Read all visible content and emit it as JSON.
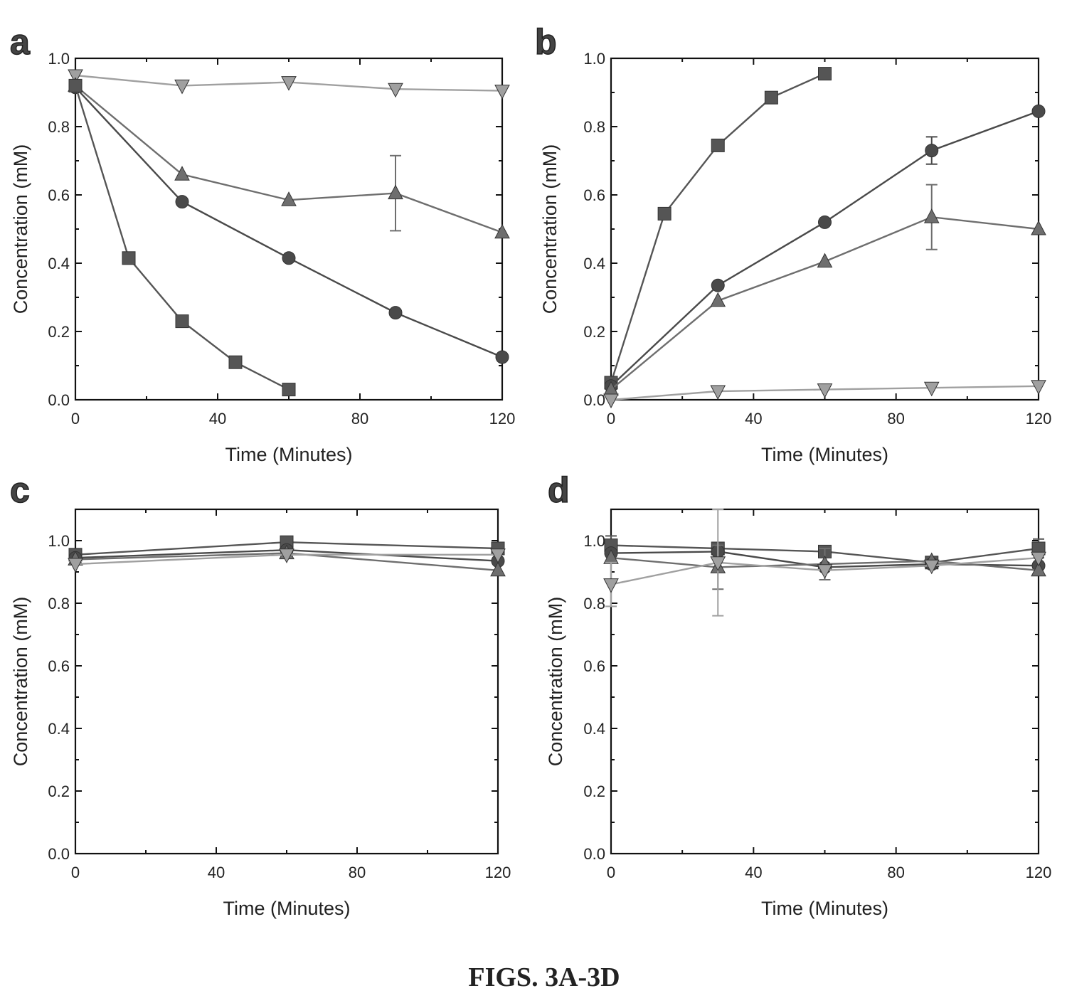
{
  "figure_caption": "FIGS. 3A-3D",
  "colors": {
    "dark": "#4a4a4a",
    "medium": "#6e6e6e",
    "light": "#a0a0a0",
    "axis": "#111111"
  },
  "chart_data": [
    {
      "panel": "a",
      "type": "line",
      "xlabel": "Time (Minutes)",
      "ylabel": "Concentration (mM)",
      "xlim": [
        0,
        120
      ],
      "ylim": [
        0,
        1.0
      ],
      "xticks": [
        0,
        40,
        80,
        120
      ],
      "yticks": [
        0.0,
        0.2,
        0.4,
        0.6,
        0.8,
        1.0
      ],
      "xtick_labels": [
        "0",
        "40",
        "80",
        "120"
      ],
      "ytick_labels": [
        "0.0",
        "0.2",
        "0.4",
        "0.6",
        "0.8",
        "1.0"
      ],
      "series": [
        {
          "marker": "triangle-down",
          "color": "#a0a0a0",
          "x": [
            0,
            30,
            60,
            90,
            120
          ],
          "y": [
            0.95,
            0.92,
            0.93,
            0.91,
            0.905
          ]
        },
        {
          "marker": "triangle-up",
          "color": "#6e6e6e",
          "x": [
            0,
            30,
            60,
            90,
            120
          ],
          "y": [
            0.92,
            0.66,
            0.585,
            0.605,
            0.49
          ],
          "err": [
            0,
            0,
            0,
            0.11,
            0
          ]
        },
        {
          "marker": "circle",
          "color": "#4a4a4a",
          "x": [
            0,
            30,
            60,
            90,
            120
          ],
          "y": [
            0.915,
            0.58,
            0.415,
            0.255,
            0.125
          ]
        },
        {
          "marker": "square",
          "color": "#555555",
          "x": [
            0,
            15,
            30,
            45,
            60
          ],
          "y": [
            0.92,
            0.415,
            0.23,
            0.11,
            0.03
          ]
        }
      ]
    },
    {
      "panel": "b",
      "type": "line",
      "xlabel": "Time (Minutes)",
      "ylabel": "Concentration (mM)",
      "xlim": [
        0,
        120
      ],
      "ylim": [
        0,
        1.0
      ],
      "xticks": [
        0,
        40,
        80,
        120
      ],
      "yticks": [
        0.0,
        0.2,
        0.4,
        0.6,
        0.8,
        1.0
      ],
      "xtick_labels": [
        "0",
        "40",
        "80",
        "120"
      ],
      "ytick_labels": [
        "0.0",
        "0.2",
        "0.4",
        "0.6",
        "0.8",
        "1.0"
      ],
      "series": [
        {
          "marker": "square",
          "color": "#555555",
          "x": [
            0,
            15,
            30,
            45,
            60
          ],
          "y": [
            0.05,
            0.545,
            0.745,
            0.885,
            0.955
          ]
        },
        {
          "marker": "circle",
          "color": "#4a4a4a",
          "x": [
            0,
            30,
            60,
            90,
            120
          ],
          "y": [
            0.04,
            0.335,
            0.52,
            0.73,
            0.845
          ],
          "err": [
            0,
            0,
            0,
            0.04,
            0
          ]
        },
        {
          "marker": "triangle-up",
          "color": "#6e6e6e",
          "x": [
            0,
            30,
            60,
            90,
            120
          ],
          "y": [
            0.03,
            0.29,
            0.405,
            0.535,
            0.5
          ],
          "err": [
            0,
            0,
            0,
            0.095,
            0
          ]
        },
        {
          "marker": "triangle-down",
          "color": "#a0a0a0",
          "x": [
            0,
            30,
            60,
            90,
            120
          ],
          "y": [
            0.0,
            0.025,
            0.03,
            0.035,
            0.04
          ]
        }
      ]
    },
    {
      "panel": "c",
      "type": "line",
      "xlabel": "Time (Minutes)",
      "ylabel": "Concentration (mM)",
      "xlim": [
        0,
        120
      ],
      "ylim": [
        0,
        1.1
      ],
      "xticks": [
        0,
        40,
        80,
        120
      ],
      "yticks": [
        0.0,
        0.2,
        0.4,
        0.6,
        0.8,
        1.0
      ],
      "xtick_labels": [
        "0",
        "40",
        "80",
        "120"
      ],
      "ytick_labels": [
        "0.0",
        "0.2",
        "0.4",
        "0.6",
        "0.8",
        "1.0"
      ],
      "series": [
        {
          "marker": "square",
          "color": "#555555",
          "x": [
            0,
            60,
            120
          ],
          "y": [
            0.955,
            0.995,
            0.975
          ]
        },
        {
          "marker": "circle",
          "color": "#4a4a4a",
          "x": [
            0,
            60,
            120
          ],
          "y": [
            0.945,
            0.97,
            0.935
          ]
        },
        {
          "marker": "triangle-up",
          "color": "#6e6e6e",
          "x": [
            0,
            60,
            120
          ],
          "y": [
            0.94,
            0.96,
            0.905
          ]
        },
        {
          "marker": "triangle-down",
          "color": "#a0a0a0",
          "x": [
            0,
            60,
            120
          ],
          "y": [
            0.925,
            0.955,
            0.955
          ]
        }
      ]
    },
    {
      "panel": "d",
      "type": "line",
      "xlabel": "Time (Minutes)",
      "ylabel": "Concentration (mM)",
      "xlim": [
        0,
        120
      ],
      "ylim": [
        0,
        1.1
      ],
      "xticks": [
        0,
        40,
        80,
        120
      ],
      "yticks": [
        0.0,
        0.2,
        0.4,
        0.6,
        0.8,
        1.0
      ],
      "xtick_labels": [
        "0",
        "40",
        "80",
        "120"
      ],
      "ytick_labels": [
        "0.0",
        "0.2",
        "0.4",
        "0.6",
        "0.8",
        "1.0"
      ],
      "series": [
        {
          "marker": "square",
          "color": "#555555",
          "x": [
            0,
            30,
            60,
            90,
            120
          ],
          "y": [
            0.985,
            0.975,
            0.965,
            0.93,
            0.975
          ],
          "err": [
            0.03,
            0,
            0,
            0,
            0.03
          ]
        },
        {
          "marker": "circle",
          "color": "#4a4a4a",
          "x": [
            0,
            30,
            60,
            90,
            120
          ],
          "y": [
            0.96,
            0.965,
            0.915,
            0.925,
            0.92
          ]
        },
        {
          "marker": "triangle-up",
          "color": "#6e6e6e",
          "x": [
            0,
            30,
            60,
            90,
            120
          ],
          "y": [
            0.945,
            0.915,
            0.925,
            0.935,
            0.905
          ],
          "err": [
            0,
            0.07,
            0.05,
            0,
            0
          ]
        },
        {
          "marker": "triangle-down",
          "color": "#a0a0a0",
          "x": [
            0,
            30,
            60,
            90,
            120
          ],
          "y": [
            0.86,
            0.93,
            0.905,
            0.92,
            0.945
          ],
          "err": [
            0.07,
            0.17,
            0,
            0,
            0
          ]
        }
      ]
    }
  ]
}
